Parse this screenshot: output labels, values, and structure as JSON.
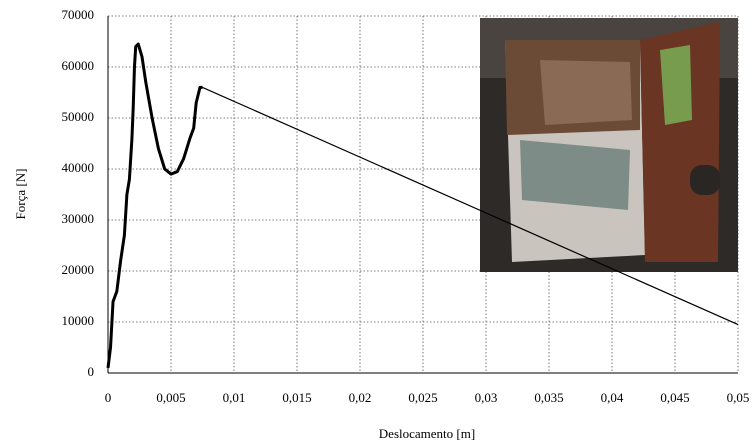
{
  "chart_data": {
    "type": "line",
    "x_label": "Deslocamento [m]",
    "y_label": "Força  [N]",
    "xlim": [
      0,
      0.05
    ],
    "ylim": [
      0,
      70000
    ],
    "xticks": [
      0,
      {
        "value": 0.005,
        "label": "0,005"
      },
      {
        "value": 0.01,
        "label": "0,01"
      },
      {
        "value": 0.015,
        "label": "0,015"
      },
      {
        "value": 0.02,
        "label": "0,02"
      },
      {
        "value": 0.025,
        "label": "0,025"
      },
      {
        "value": 0.03,
        "label": "0,03"
      },
      {
        "value": 0.035,
        "label": "0,035"
      },
      {
        "value": 0.04,
        "label": "0,04"
      },
      {
        "value": 0.045,
        "label": "0,045"
      },
      {
        "value": 0.05,
        "label": "0,05"
      }
    ],
    "yticks": [
      0,
      10000,
      20000,
      30000,
      40000,
      50000,
      60000,
      70000
    ],
    "grid": true,
    "series": [
      {
        "color": "#000000",
        "line_width": 3,
        "x": [
          0,
          0.0002,
          0.0004,
          0.0007,
          0.001,
          0.0013,
          0.0015,
          0.0017,
          0.0019,
          0.002,
          0.0021,
          0.0022,
          0.0024,
          0.0027,
          0.003,
          0.0035,
          0.004,
          0.0045,
          0.005,
          0.0055,
          0.006,
          0.0065,
          0.0068,
          0.007,
          0.0073,
          0.0075
        ],
        "values": [
          1000,
          5000,
          14000,
          16000,
          22000,
          27000,
          35000,
          38000,
          46000,
          52000,
          60000,
          64000,
          64500,
          62000,
          57000,
          50000,
          44000,
          40000,
          39000,
          39500,
          42000,
          46000,
          48000,
          53000,
          56000,
          56000
        ]
      },
      {
        "color": "#000000",
        "line_width": 1.2,
        "x": [
          0.0075,
          0.05
        ],
        "values": [
          56000,
          9500
        ]
      }
    ]
  }
}
